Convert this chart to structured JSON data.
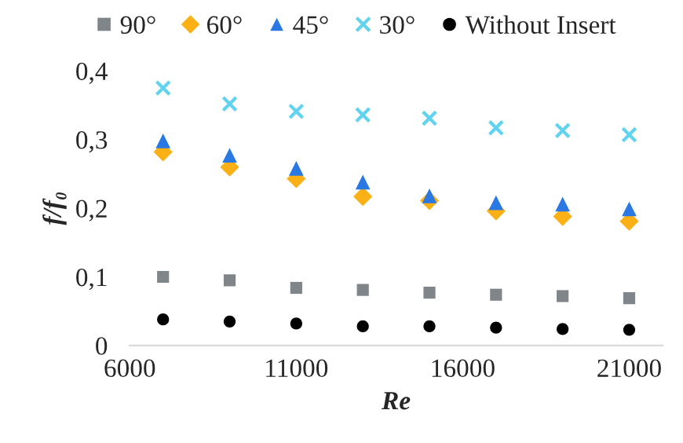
{
  "chart_data": {
    "type": "scatter",
    "xlabel": "Re",
    "ylabel": "f/f₀",
    "x": [
      7000,
      9000,
      11000,
      13000,
      15000,
      17000,
      19000,
      21000
    ],
    "series": [
      {
        "name": "90°",
        "color": "#7f8588",
        "marker": "square",
        "values": [
          0.1,
          0.095,
          0.084,
          0.081,
          0.077,
          0.074,
          0.072,
          0.069
        ]
      },
      {
        "name": "60°",
        "color": "#fbb016",
        "marker": "diamond",
        "values": [
          0.282,
          0.26,
          0.243,
          0.217,
          0.211,
          0.196,
          0.188,
          0.181
        ]
      },
      {
        "name": "45°",
        "color": "#2a78e4",
        "marker": "triangle",
        "values": [
          0.298,
          0.277,
          0.258,
          0.238,
          0.218,
          0.208,
          0.206,
          0.199
        ]
      },
      {
        "name": "30°",
        "color": "#5fd3f0",
        "marker": "cross",
        "values": [
          0.375,
          0.352,
          0.341,
          0.336,
          0.331,
          0.317,
          0.313,
          0.307
        ]
      },
      {
        "name": "Without Insert",
        "color": "#000000",
        "marker": "circle",
        "values": [
          0.038,
          0.035,
          0.032,
          0.028,
          0.028,
          0.026,
          0.024,
          0.023
        ]
      }
    ],
    "xlim": [
      6000,
      22000
    ],
    "xticks": [
      6000,
      11000,
      16000,
      21000
    ],
    "ylim": [
      0,
      0.4
    ],
    "yticks": [
      0,
      {
        "value": 0.1,
        "label": "0,1"
      },
      {
        "value": 0.2,
        "label": "0,2"
      },
      {
        "value": 0.3,
        "label": "0,3"
      },
      {
        "value": 0.4,
        "label": "0,4"
      }
    ],
    "grid": false,
    "legend": "top"
  }
}
